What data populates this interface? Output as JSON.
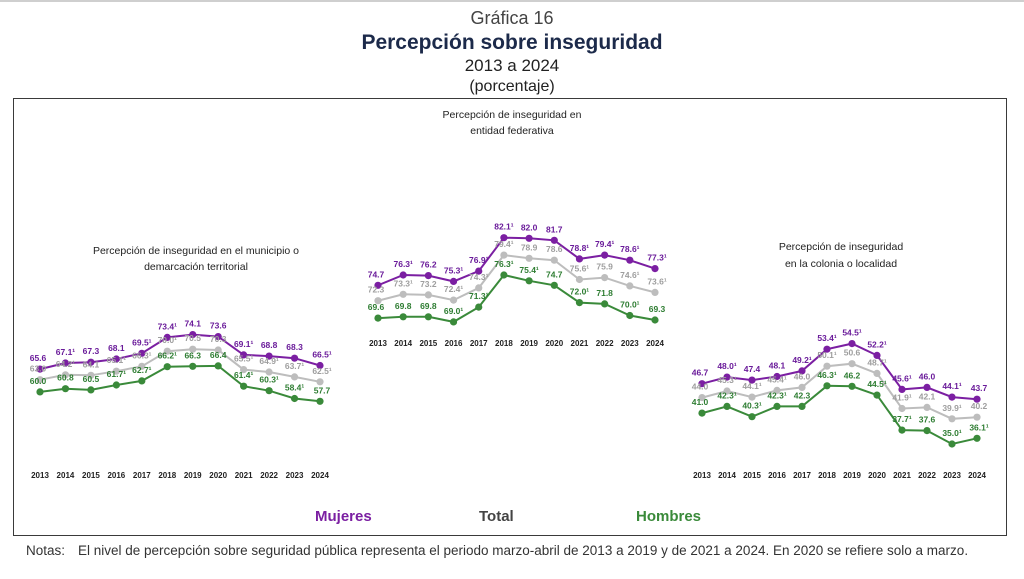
{
  "header": {
    "kicker": "Gráfica 16",
    "title": "Percepción sobre inseguridad",
    "period": "2013 a 2024",
    "unit": "(porcentaje)"
  },
  "legend": {
    "mujeres": "Mujeres",
    "total": "Total",
    "hombres": "Hombres"
  },
  "colors": {
    "mujeres": "#7b1fa2",
    "total": "#bdbdbd",
    "hombres": "#3a8a3a"
  },
  "notes": {
    "label": "Notas:",
    "text": "El nivel de percepción sobre seguridad pública representa el periodo marzo-abril de 2013 a 2019 y de 2021 a 2024. En 2020 se refiere solo a marzo."
  },
  "chart_data": [
    {
      "type": "line",
      "title": "Percepción de inseguridad en el municipio o demarcación territorial",
      "categories": [
        "2013",
        "2014",
        "2015",
        "2016",
        "2017",
        "2018",
        "2019",
        "2020",
        "2021",
        "2022",
        "2023",
        "2024"
      ],
      "series": [
        {
          "name": "Mujeres",
          "values": [
            65.6,
            67.1,
            67.3,
            68.1,
            69.5,
            73.4,
            74.1,
            73.6,
            69.1,
            68.8,
            68.3,
            66.5
          ],
          "labels": [
            "65.6",
            "67.1¹",
            "67.3",
            "68.1",
            "69.5¹",
            "73.4¹",
            "74.1",
            "73.6",
            "69.1¹",
            "68.8",
            "68.3",
            "66.5¹"
          ]
        },
        {
          "name": "Total",
          "values": [
            63.0,
            64.2,
            64.1,
            65.1,
            66.3,
            70.0,
            70.5,
            70.3,
            65.5,
            64.9,
            63.7,
            62.5
          ],
          "labels": [
            "63.0",
            "64.2¹",
            "64.1",
            "65.1¹",
            "66.3¹",
            "70.0¹",
            "70.5",
            "70.3",
            "65.5¹",
            "64.9¹",
            "63.7¹",
            "62.5¹"
          ]
        },
        {
          "name": "Hombres",
          "values": [
            60.0,
            60.8,
            60.5,
            61.7,
            62.7,
            66.2,
            66.3,
            66.4,
            61.4,
            60.3,
            58.4,
            57.7
          ],
          "labels": [
            "60.0",
            "60.8",
            "60.5",
            "61.7¹",
            "62.7¹",
            "66.2¹",
            "66.3",
            "66.4",
            "61.4¹",
            "60.3¹",
            "58.4¹",
            "57.7"
          ]
        }
      ]
    },
    {
      "type": "line",
      "title": "Percepción de inseguridad en entidad federativa",
      "categories": [
        "2013",
        "2014",
        "2015",
        "2016",
        "2017",
        "2018",
        "2019",
        "2020",
        "2021",
        "2022",
        "2023",
        "2024"
      ],
      "series": [
        {
          "name": "Mujeres",
          "values": [
            74.7,
            76.3,
            76.2,
            75.3,
            76.9,
            82.1,
            82.0,
            81.7,
            78.8,
            79.4,
            78.6,
            77.3
          ],
          "labels": [
            "74.7",
            "76.3¹",
            "76.2",
            "75.3¹",
            "76.9¹",
            "82.1¹",
            "82.0",
            "81.7",
            "78.8¹",
            "79.4¹",
            "78.6¹",
            "77.3¹"
          ]
        },
        {
          "name": "Total",
          "values": [
            72.3,
            73.3,
            73.2,
            72.4,
            74.3,
            79.4,
            78.9,
            78.6,
            75.6,
            75.9,
            74.6,
            73.6
          ],
          "labels": [
            "72.3",
            "73.3¹",
            "73.2",
            "72.4¹",
            "74.3¹",
            "79.4¹",
            "78.9",
            "78.6",
            "75.6¹",
            "75.9",
            "74.6¹",
            "73.6¹"
          ]
        },
        {
          "name": "Hombres",
          "values": [
            69.6,
            69.8,
            69.8,
            69.0,
            71.3,
            76.3,
            75.4,
            74.7,
            72.0,
            71.8,
            70.0,
            69.3
          ],
          "labels": [
            "69.6",
            "69.8",
            "69.8",
            "69.0¹",
            "71.3¹",
            "76.3¹",
            "75.4¹",
            "74.7",
            "72.0¹",
            "71.8",
            "70.0¹",
            "69.3"
          ]
        }
      ]
    },
    {
      "type": "line",
      "title": "Percepción de inseguridad en la colonia o localidad",
      "categories": [
        "2013",
        "2014",
        "2015",
        "2016",
        "2017",
        "2018",
        "2019",
        "2020",
        "2021",
        "2022",
        "2023",
        "2024"
      ],
      "series": [
        {
          "name": "Mujeres",
          "values": [
            46.7,
            48.0,
            47.4,
            48.1,
            49.2,
            53.4,
            54.5,
            52.2,
            45.6,
            46.0,
            44.1,
            43.7
          ],
          "labels": [
            "46.7",
            "48.0¹",
            "47.4",
            "48.1",
            "49.2¹",
            "53.4¹",
            "54.5¹",
            "52.2¹",
            "45.6¹",
            "46.0",
            "44.1¹",
            "43.7"
          ]
        },
        {
          "name": "Total",
          "values": [
            44.0,
            45.3,
            44.1,
            45.4,
            46.0,
            50.1,
            50.6,
            48.7,
            41.9,
            42.1,
            39.9,
            40.2
          ],
          "labels": [
            "44.0",
            "45.3¹",
            "44.1¹",
            "45.4¹",
            "46.0",
            "50.1¹",
            "50.6",
            "48.7¹",
            "41.9¹",
            "42.1",
            "39.9¹",
            "40.2"
          ]
        },
        {
          "name": "Hombres",
          "values": [
            41.0,
            42.3,
            40.3,
            42.3,
            42.3,
            46.3,
            46.2,
            44.5,
            37.7,
            37.6,
            35.0,
            36.1
          ],
          "labels": [
            "41.0",
            "42.3¹",
            "40.3¹",
            "42.3¹",
            "42.3",
            "46.3¹",
            "46.2",
            "44.5¹",
            "37.7¹",
            "37.6",
            "35.0¹",
            "36.1¹"
          ]
        }
      ]
    }
  ]
}
